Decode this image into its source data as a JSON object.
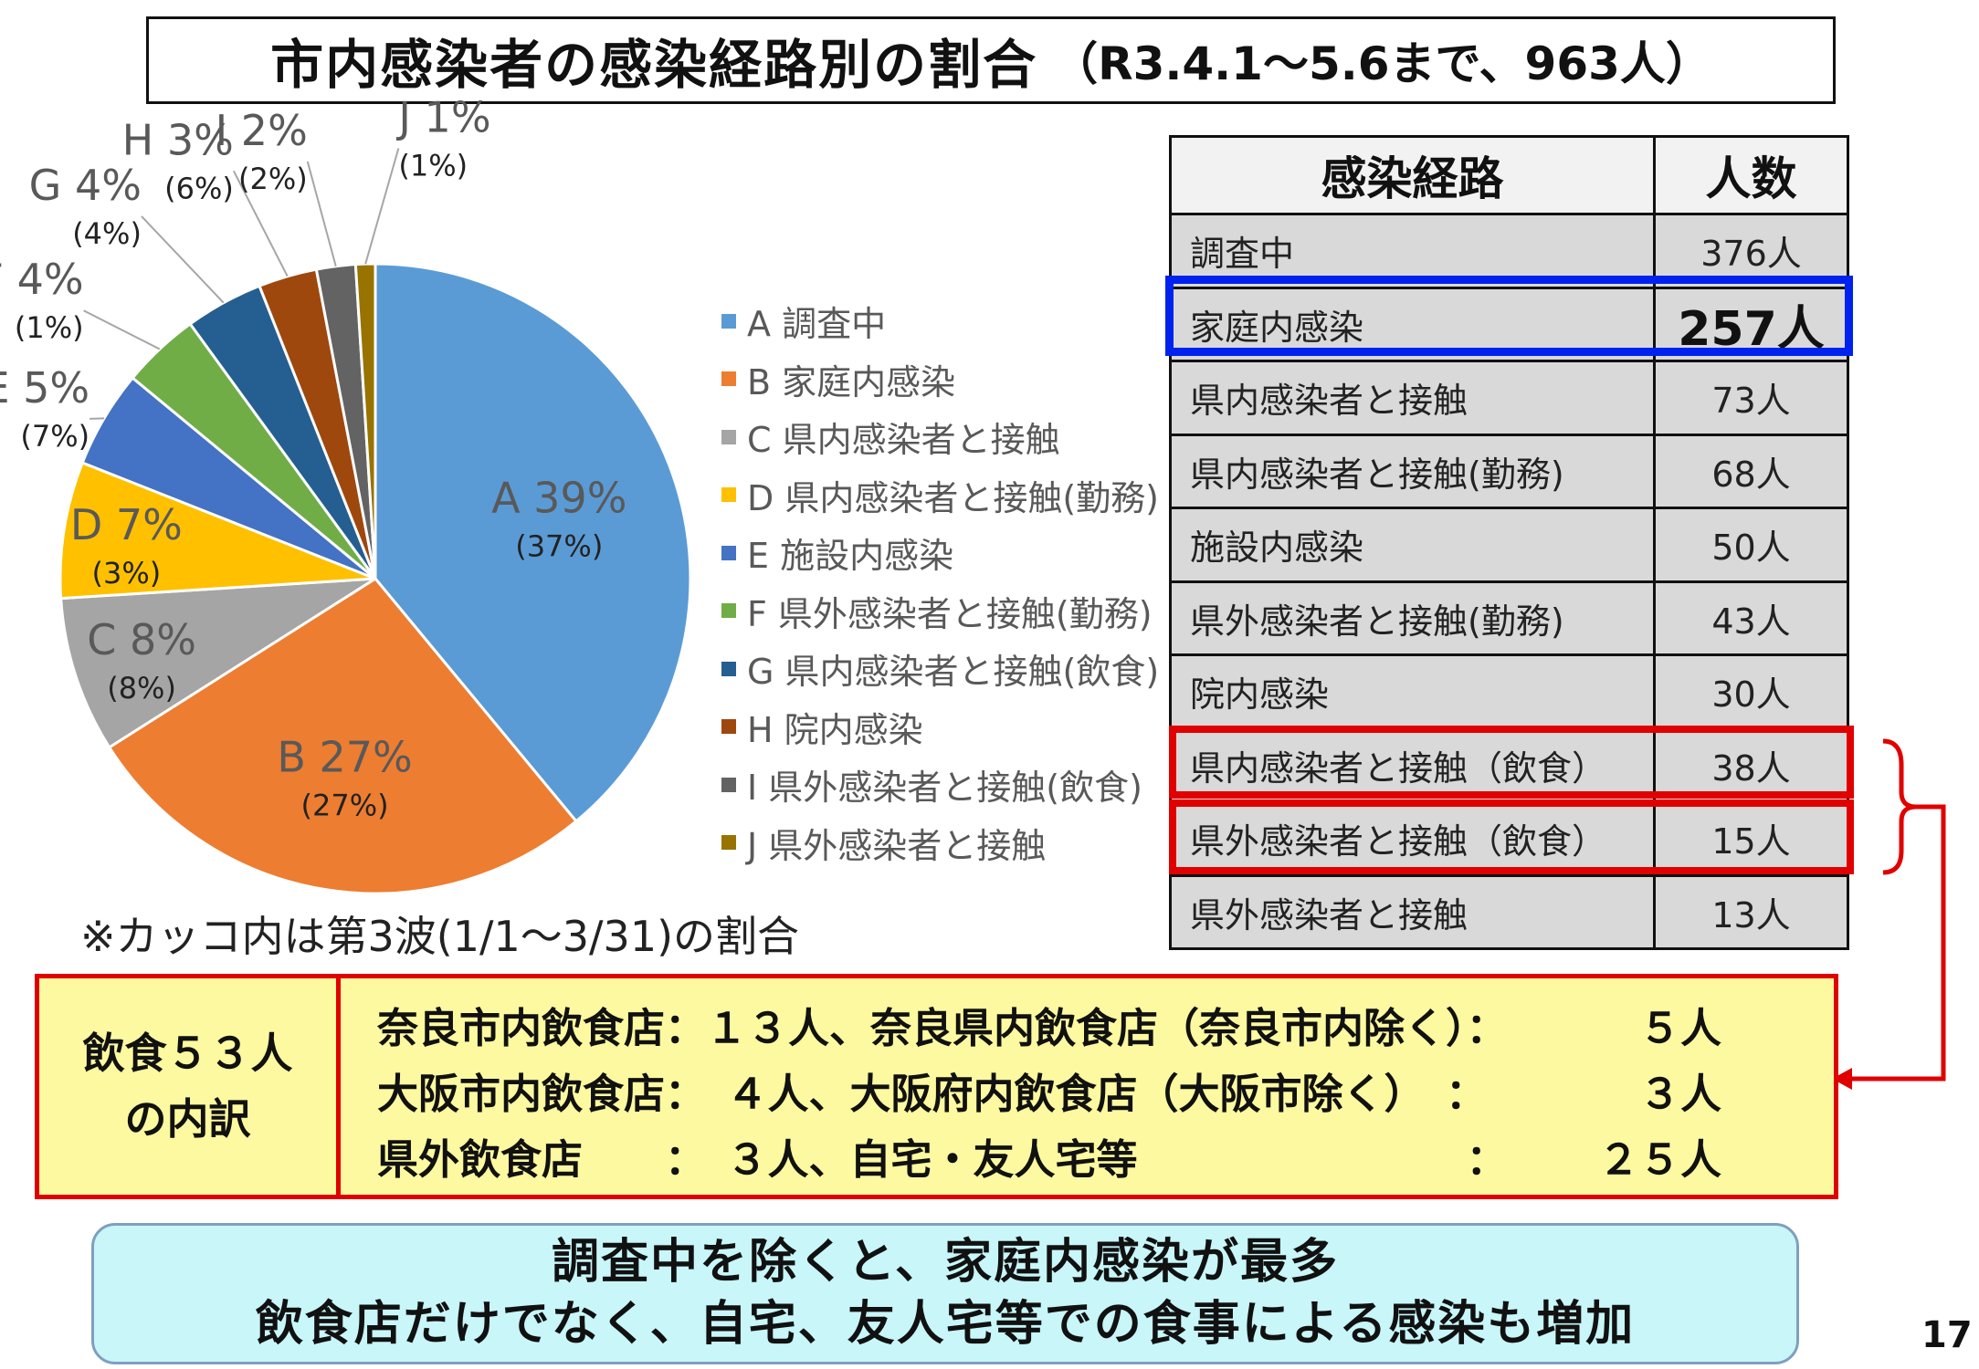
{
  "title": {
    "main": "市内感染者の感染経路別の割合",
    "sub": "（R3.4.1～5.6まで、963人）"
  },
  "chart_data": {
    "type": "pie",
    "title": "市内感染者の感染経路別の割合（R3.4.1～5.6まで、963人）",
    "slices": [
      {
        "label": "A",
        "name": "調査中",
        "value": 39,
        "third_wave": 37,
        "color": "#5b9bd5"
      },
      {
        "label": "B",
        "name": "家庭内感染",
        "value": 27,
        "third_wave": 27,
        "color": "#ed7d31"
      },
      {
        "label": "C",
        "name": "県内感染者と接触",
        "value": 8,
        "third_wave": 8,
        "color": "#a5a5a5"
      },
      {
        "label": "D",
        "name": "県内感染者と接触(勤務)",
        "value": 7,
        "third_wave": 3,
        "color": "#ffc000"
      },
      {
        "label": "E",
        "name": "施設内感染",
        "value": 5,
        "third_wave": 7,
        "color": "#4472c4"
      },
      {
        "label": "F",
        "name": "県外感染者と接触(勤務)",
        "value": 4,
        "third_wave": 1,
        "color": "#70ad47"
      },
      {
        "label": "G",
        "name": "県内感染者と接触(飲食)",
        "value": 4,
        "third_wave": 4,
        "color": "#255e91"
      },
      {
        "label": "H",
        "name": "院内感染",
        "value": 3,
        "third_wave": 6,
        "color": "#9e480e"
      },
      {
        "label": "I",
        "name": "県外感染者と接触(飲食)",
        "value": 2,
        "third_wave": 2,
        "color": "#636363"
      },
      {
        "label": "J",
        "name": "県外感染者と接触",
        "value": 1,
        "third_wave": 1,
        "color": "#997300"
      }
    ],
    "legend_position": "right",
    "note": "※カッコ内は第3波(1/1～3/31)の割合"
  },
  "table": {
    "headers": [
      "感染経路",
      "人数"
    ],
    "rows": [
      {
        "route": "調査中",
        "count": "376人"
      },
      {
        "route": "家庭内感染",
        "count": "257人"
      },
      {
        "route": "県内感染者と接触",
        "count": "73人"
      },
      {
        "route": "県内感染者と接触(勤務)",
        "count": "68人"
      },
      {
        "route": "施設内感染",
        "count": "50人"
      },
      {
        "route": "県外感染者と接触(勤務)",
        "count": "43人"
      },
      {
        "route": "院内感染",
        "count": "30人"
      },
      {
        "route": "県内感染者と接触（飲食）",
        "count": "38人"
      },
      {
        "route": "県外感染者と接触（飲食）",
        "count": "15人"
      },
      {
        "route": "県外感染者と接触",
        "count": "13人"
      }
    ]
  },
  "breakdown": {
    "label_line1": "飲食５３人",
    "label_line2": "の内訳",
    "lines": [
      {
        "main": "奈良市内飲食店：１３人、奈良県内飲食店（奈良市内除く）：",
        "end": "５人"
      },
      {
        "main": "大阪市内飲食店：　４人、大阪府内飲食店（大阪市除く）　：",
        "end": "３人"
      },
      {
        "main": "県外飲食店　　：　３人、自宅・友人宅等　　　　　　　　：",
        "end": "２５人"
      }
    ]
  },
  "conclusion": {
    "line1": "調査中を除くと、家庭内感染が最多",
    "line2": "飲食店だけでなく、自宅、友人宅等での食事による感染も増加"
  },
  "page_number": "17",
  "colors": {
    "highlight_blue": "#0022ee",
    "highlight_red": "#e00000",
    "breakdown_bg": "#fdf9a0",
    "conclusion_bg": "#c8f6f9"
  }
}
